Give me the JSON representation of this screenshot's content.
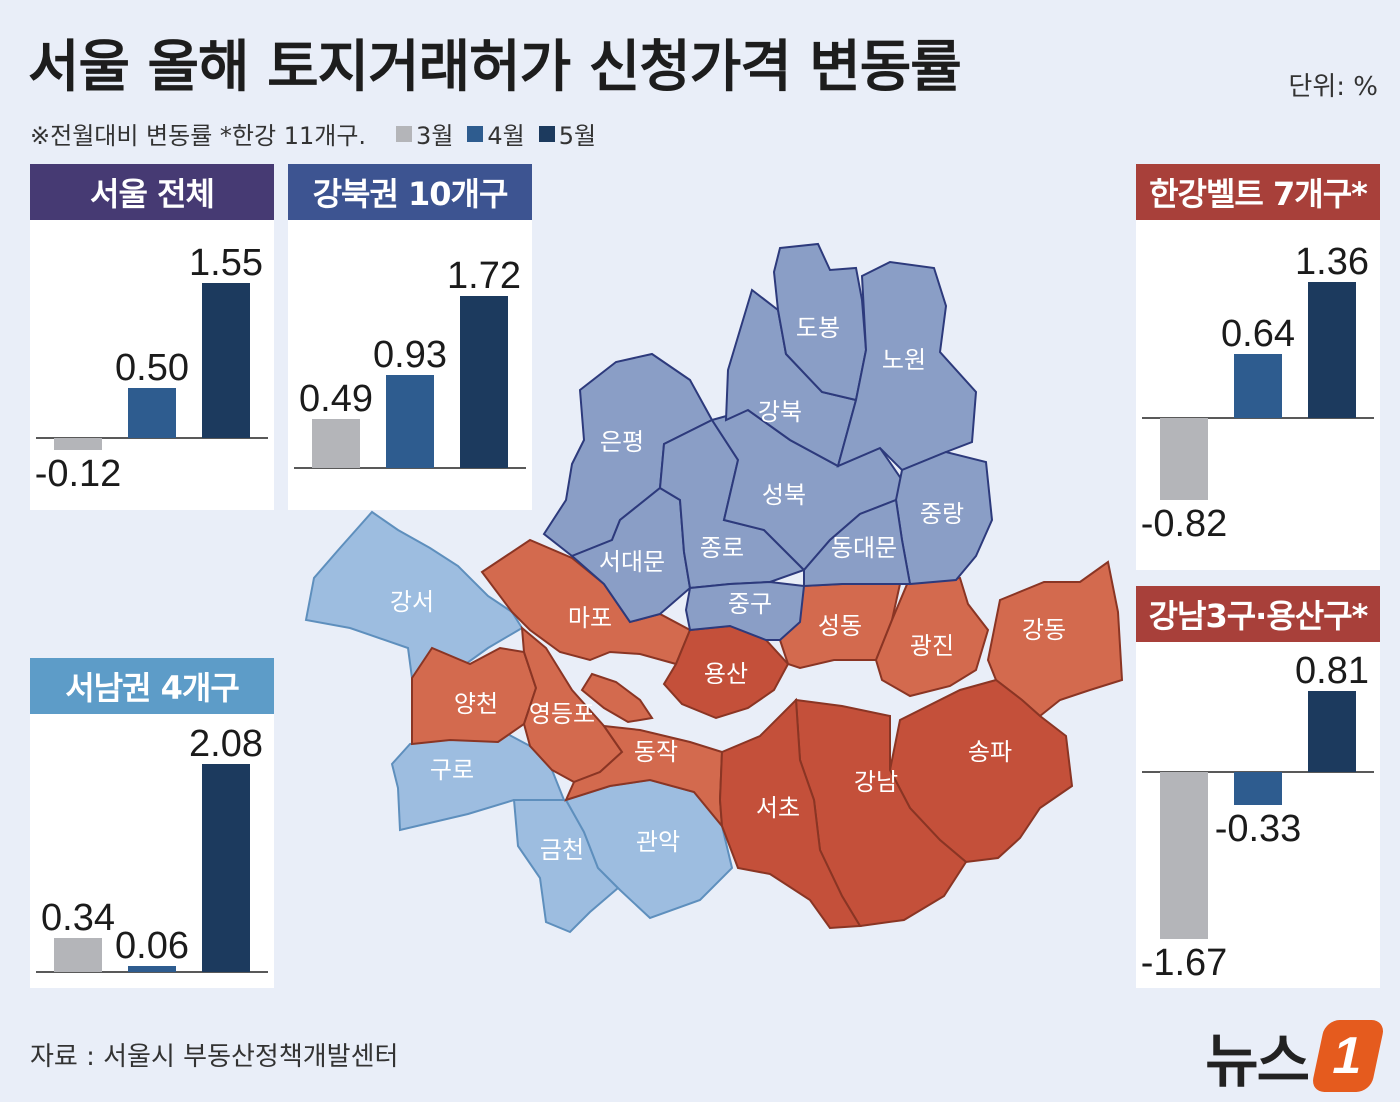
{
  "header": {
    "title": "서울 올해 토지거래허가 신청가격 변동률",
    "unit": "단위: %",
    "note": "※전월대비 변동률  *한강 11개구.",
    "legend": [
      {
        "label": "3월",
        "color": "#b4b5b9"
      },
      {
        "label": "4월",
        "color": "#2e5c8f"
      },
      {
        "label": "5월",
        "color": "#1c3a5e"
      }
    ]
  },
  "chart_data": [
    {
      "type": "bar",
      "title": "서울 전체",
      "categories": [
        "3월",
        "4월",
        "5월"
      ],
      "values": [
        -0.12,
        0.5,
        1.55
      ],
      "labels": [
        "-0.12",
        "0.50",
        "1.55"
      ],
      "header_color": "#463a73"
    },
    {
      "type": "bar",
      "title": "강북권 10개구",
      "categories": [
        "3월",
        "4월",
        "5월"
      ],
      "values": [
        0.49,
        0.93,
        1.72
      ],
      "labels": [
        "0.49",
        "0.93",
        "1.72"
      ],
      "header_color": "#3d5491"
    },
    {
      "type": "bar",
      "title": "서남권 4개구",
      "categories": [
        "3월",
        "4월",
        "5월"
      ],
      "values": [
        0.34,
        0.06,
        2.08
      ],
      "labels": [
        "0.34",
        "0.06",
        "2.08"
      ],
      "header_color": "#5d9cc8"
    },
    {
      "type": "bar",
      "title": "한강벨트 7개구*",
      "categories": [
        "3월",
        "4월",
        "5월"
      ],
      "values": [
        -0.82,
        0.64,
        1.36
      ],
      "labels": [
        "-0.82",
        "0.64",
        "1.36"
      ],
      "header_color": "#a8403a"
    },
    {
      "type": "bar",
      "title": "강남3구·용산구*",
      "categories": [
        "3월",
        "4월",
        "5월"
      ],
      "values": [
        -1.67,
        -0.33,
        0.81
      ],
      "labels": [
        "-1.67",
        "-0.33",
        "0.81"
      ],
      "header_color": "#a8403a"
    }
  ],
  "map": {
    "colors": {
      "gangbuk": "#8a9ec6",
      "seonam": "#9dbde0",
      "hangang": "#d36a4e",
      "gangnam": "#c4503a"
    },
    "districts": [
      {
        "name": "도봉",
        "group": "gangbuk"
      },
      {
        "name": "노원",
        "group": "gangbuk"
      },
      {
        "name": "강북",
        "group": "gangbuk"
      },
      {
        "name": "은평",
        "group": "gangbuk"
      },
      {
        "name": "성북",
        "group": "gangbuk"
      },
      {
        "name": "종로",
        "group": "gangbuk"
      },
      {
        "name": "중랑",
        "group": "gangbuk"
      },
      {
        "name": "서대문",
        "group": "gangbuk"
      },
      {
        "name": "동대문",
        "group": "gangbuk"
      },
      {
        "name": "중구",
        "group": "gangbuk"
      },
      {
        "name": "강서",
        "group": "seonam"
      },
      {
        "name": "구로",
        "group": "seonam"
      },
      {
        "name": "금천",
        "group": "seonam"
      },
      {
        "name": "관악",
        "group": "seonam"
      },
      {
        "name": "마포",
        "group": "hangang"
      },
      {
        "name": "성동",
        "group": "hangang"
      },
      {
        "name": "광진",
        "group": "hangang"
      },
      {
        "name": "강동",
        "group": "hangang"
      },
      {
        "name": "양천",
        "group": "hangang"
      },
      {
        "name": "영등포",
        "group": "hangang"
      },
      {
        "name": "동작",
        "group": "hangang"
      },
      {
        "name": "용산",
        "group": "gangnam"
      },
      {
        "name": "서초",
        "group": "gangnam"
      },
      {
        "name": "강남",
        "group": "gangnam"
      },
      {
        "name": "송파",
        "group": "gangnam"
      }
    ]
  },
  "footer": {
    "source": "자료 : 서울시 부동산정책개발센터",
    "logo_text": "뉴스",
    "logo_mark": "1"
  }
}
